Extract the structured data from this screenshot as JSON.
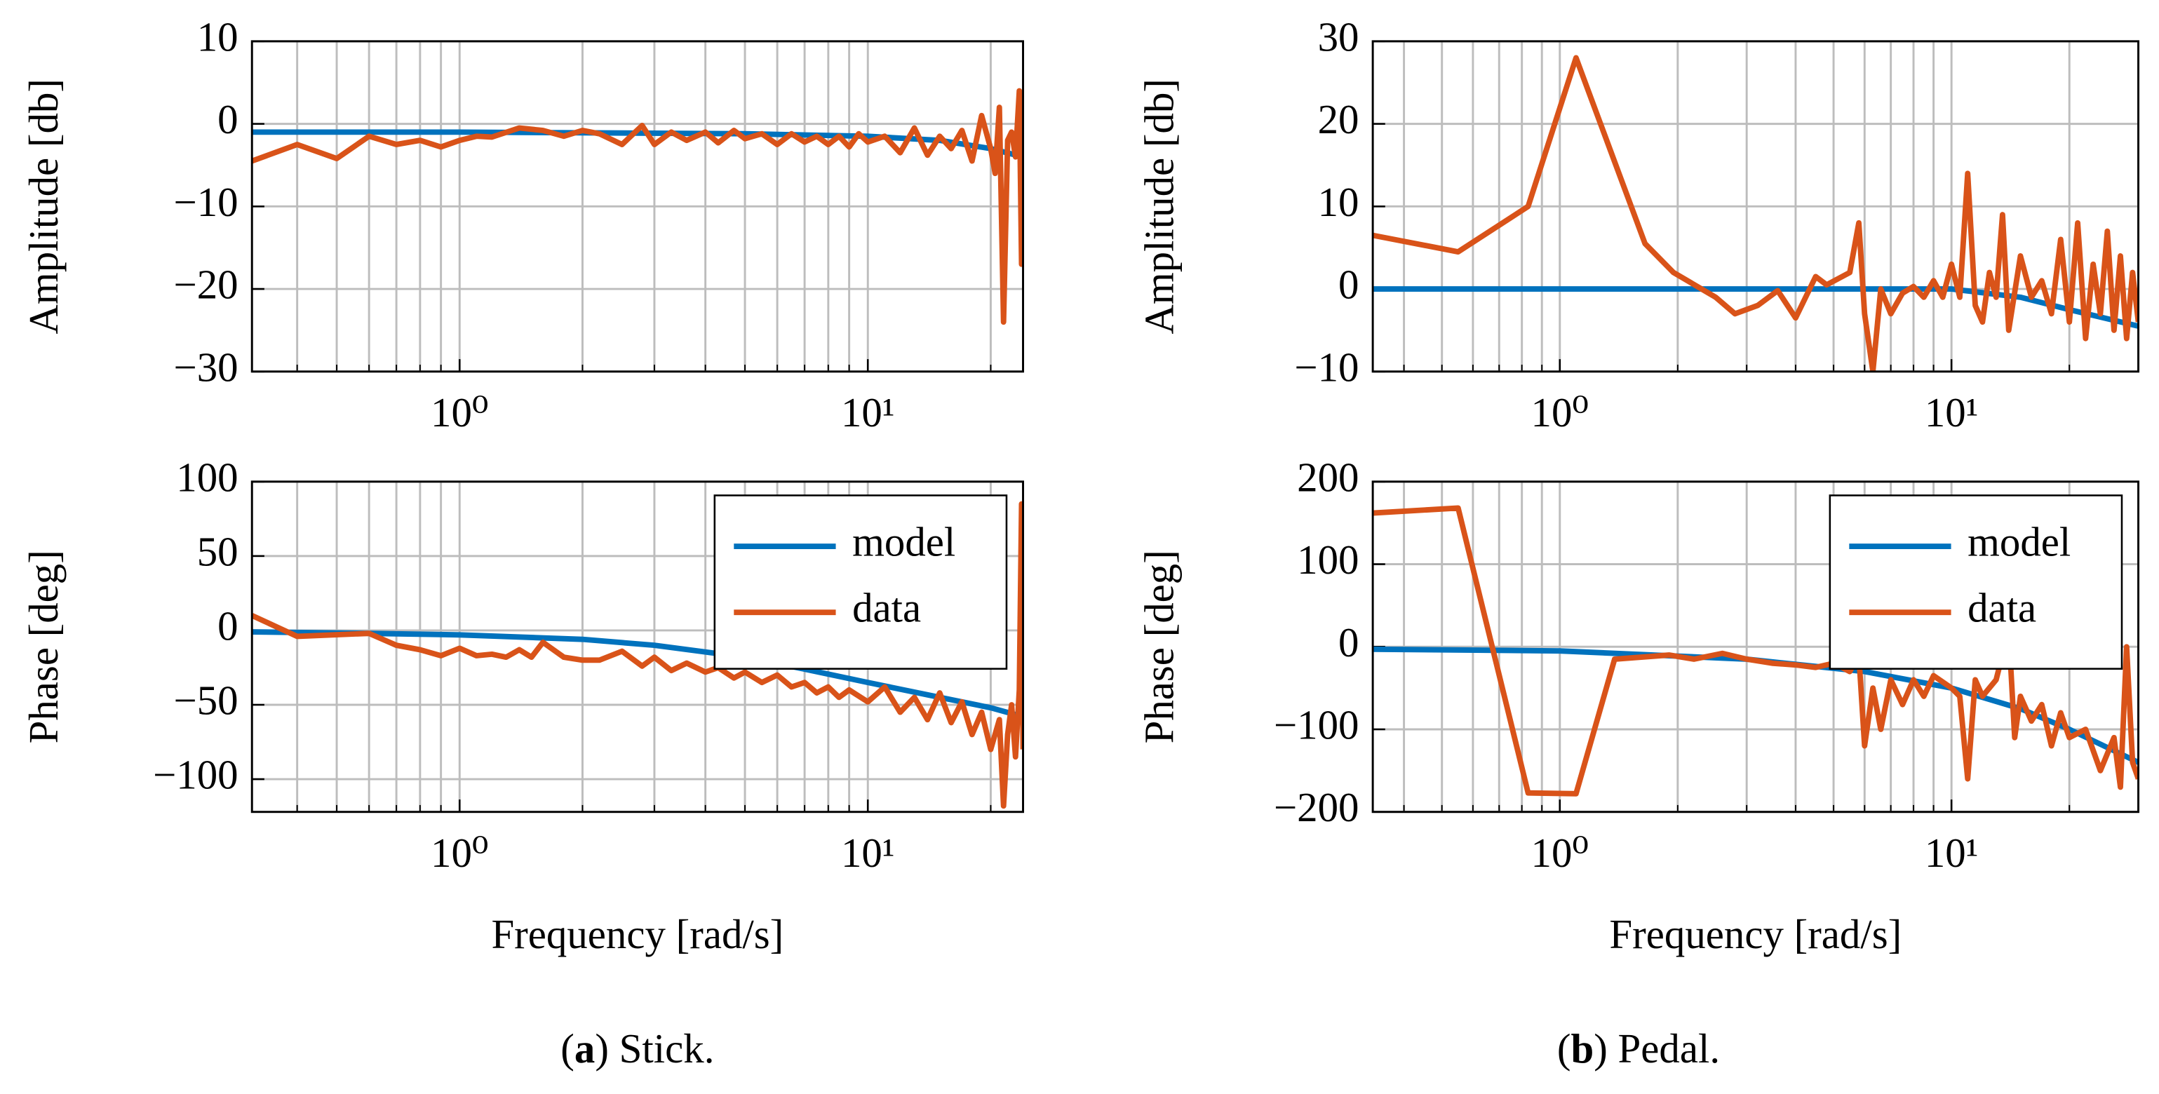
{
  "chart_data": [
    {
      "type": "line",
      "xlog": true,
      "grid": true,
      "ylabel": "Amplitude [db]",
      "xlim": [
        0.31,
        24
      ],
      "xticks": [
        {
          "value": 1,
          "label": "10⁰"
        },
        {
          "value": 10,
          "label": "10¹"
        }
      ],
      "xminorticks": [
        0.4,
        0.5,
        0.6,
        0.7,
        0.8,
        0.9,
        2,
        3,
        4,
        5,
        6,
        7,
        8,
        9,
        20
      ],
      "ylim": [
        -30,
        10
      ],
      "yticks": [
        {
          "value": -30,
          "label": "−30"
        },
        {
          "value": -20,
          "label": "−20"
        },
        {
          "value": -10,
          "label": "−10"
        },
        0,
        10
      ],
      "series": [
        {
          "color": "#0072bd",
          "x": [
            0.31,
            1,
            5,
            10,
            15,
            20,
            24
          ],
          "values": [
            -1,
            -1,
            -1.2,
            -1.5,
            -2,
            -3,
            -4
          ]
        },
        {
          "color": "#d95319",
          "x": [
            0.31,
            0.4,
            0.5,
            0.6,
            0.7,
            0.8,
            0.9,
            1.0,
            1.1,
            1.2,
            1.4,
            1.6,
            1.8,
            2.0,
            2.2,
            2.5,
            2.8,
            3.0,
            3.3,
            3.6,
            4.0,
            4.3,
            4.7,
            5.0,
            5.5,
            6.0,
            6.5,
            7.0,
            7.5,
            8.0,
            8.5,
            9,
            9.5,
            10,
            11,
            12,
            13,
            14,
            15,
            16,
            17,
            18,
            19,
            20,
            20.5,
            21,
            21.5,
            22,
            22.5,
            23,
            23.5,
            23.8,
            24
          ],
          "values": [
            -4.5,
            -2.5,
            -4.2,
            -1.5,
            -2.5,
            -2,
            -2.8,
            -2,
            -1.5,
            -1.6,
            -0.5,
            -0.8,
            -1.5,
            -0.8,
            -1.2,
            -2.5,
            -0.2,
            -2.5,
            -1,
            -2,
            -1,
            -2.3,
            -0.8,
            -1.8,
            -1.2,
            -2.5,
            -1.2,
            -2.2,
            -1.5,
            -2.5,
            -1.5,
            -2.8,
            -1.2,
            -2.2,
            -1.5,
            -3.5,
            -0.5,
            -3.8,
            -1.5,
            -3,
            -0.8,
            -4.5,
            1,
            -3,
            -6,
            2,
            -24,
            -2,
            -1,
            -4,
            4,
            -17,
            2
          ]
        }
      ]
    },
    {
      "type": "line",
      "xlog": true,
      "grid": true,
      "ylabel": "Phase [deg]",
      "xlabel": "Frequency [rad/s]",
      "legend": "upper right",
      "xlim": [
        0.31,
        24
      ],
      "xticks": [
        {
          "value": 1,
          "label": "10⁰"
        },
        {
          "value": 10,
          "label": "10¹"
        }
      ],
      "xminorticks": [
        0.4,
        0.5,
        0.6,
        0.7,
        0.8,
        0.9,
        2,
        3,
        4,
        5,
        6,
        7,
        8,
        9,
        20
      ],
      "ylim": [
        -122,
        100
      ],
      "yticks": [
        {
          "value": -100,
          "label": "−100"
        },
        {
          "value": -50,
          "label": "−50"
        },
        0,
        50,
        100
      ],
      "series": [
        {
          "name": "model",
          "color": "#0072bd",
          "x": [
            0.31,
            0.6,
            1,
            2,
            3,
            5,
            7,
            10,
            15,
            20,
            24
          ],
          "values": [
            -1,
            -2,
            -3,
            -6,
            -10,
            -18,
            -26,
            -35,
            -45,
            -52,
            -58
          ]
        },
        {
          "name": "data",
          "color": "#d95319",
          "x": [
            0.31,
            0.4,
            0.6,
            0.7,
            0.8,
            0.9,
            1.0,
            1.1,
            1.2,
            1.3,
            1.4,
            1.5,
            1.6,
            1.8,
            2.0,
            2.2,
            2.5,
            2.8,
            3.0,
            3.3,
            3.6,
            4.0,
            4.3,
            4.7,
            5,
            5.5,
            6,
            6.5,
            7,
            7.5,
            8,
            8.5,
            9,
            10,
            11,
            12,
            13,
            14,
            15,
            16,
            17,
            18,
            19,
            20,
            21,
            21.5,
            22,
            22.5,
            23,
            23.5,
            23.8,
            24
          ],
          "values": [
            10,
            -4,
            -2,
            -10,
            -13,
            -17,
            -12,
            -17,
            -16,
            -18,
            -13,
            -18,
            -8,
            -18,
            -20,
            -20,
            -14,
            -24,
            -18,
            -27,
            -22,
            -28,
            -25,
            -32,
            -28,
            -35,
            -30,
            -38,
            -35,
            -42,
            -38,
            -45,
            -40,
            -48,
            -38,
            -55,
            -45,
            -60,
            -42,
            -62,
            -48,
            -70,
            -55,
            -80,
            -60,
            -118,
            -70,
            -50,
            -85,
            -40,
            85,
            -80
          ]
        }
      ]
    },
    {
      "type": "line",
      "xlog": true,
      "grid": true,
      "ylabel": "Amplitude [db]",
      "xlim": [
        0.333,
        30
      ],
      "xticks": [
        {
          "value": 1,
          "label": "10⁰"
        },
        {
          "value": 10,
          "label": "10¹"
        }
      ],
      "xminorticks": [
        0.4,
        0.5,
        0.6,
        0.7,
        0.8,
        0.9,
        2,
        3,
        4,
        5,
        6,
        7,
        8,
        9,
        20,
        30
      ],
      "ylim": [
        -10,
        30
      ],
      "yticks": [
        {
          "value": -10,
          "label": "−10"
        },
        0,
        10,
        20,
        30
      ],
      "series": [
        {
          "color": "#0072bd",
          "x": [
            0.333,
            10,
            15,
            20,
            30
          ],
          "values": [
            0,
            0,
            -1,
            -2.5,
            -4.5
          ]
        },
        {
          "color": "#d95319",
          "x": [
            0.333,
            0.55,
            0.83,
            1.1,
            1.65,
            1.95,
            2.5,
            2.8,
            3.2,
            3.6,
            4.0,
            4.5,
            4.8,
            5.5,
            5.8,
            6.0,
            6.3,
            6.6,
            7,
            7.5,
            8,
            8.5,
            9,
            9.5,
            10,
            10.5,
            11,
            11.5,
            12,
            12.5,
            13,
            13.5,
            14,
            15,
            16,
            17,
            18,
            19,
            20,
            21,
            22,
            23,
            24,
            25,
            26,
            27,
            28,
            29,
            30
          ],
          "values": [
            6.5,
            4.5,
            10,
            28,
            5.5,
            2,
            -1,
            -3,
            -2,
            -0.2,
            -3.5,
            1.5,
            0.5,
            2,
            8,
            -3,
            -10,
            0,
            -3,
            -0.5,
            0.3,
            -1,
            1,
            -1,
            3,
            -1,
            14,
            -2,
            -4,
            2,
            -1,
            9,
            -5,
            4,
            -1,
            1,
            -3,
            6,
            -4,
            8,
            -6,
            3,
            -3,
            7,
            -5,
            4,
            -6,
            2,
            -4
          ]
        }
      ]
    },
    {
      "type": "line",
      "xlog": true,
      "grid": true,
      "ylabel": "Phase [deg]",
      "xlabel": "Frequency [rad/s]",
      "legend": "upper right",
      "xlim": [
        0.333,
        30
      ],
      "xticks": [
        {
          "value": 1,
          "label": "10⁰"
        },
        {
          "value": 10,
          "label": "10¹"
        }
      ],
      "xminorticks": [
        0.4,
        0.5,
        0.6,
        0.7,
        0.8,
        0.9,
        2,
        3,
        4,
        5,
        6,
        7,
        8,
        9,
        20,
        30
      ],
      "ylim": [
        -200,
        200
      ],
      "yticks": [
        {
          "value": -200,
          "label": "−200"
        },
        {
          "value": -100,
          "label": "−100"
        },
        0,
        100,
        200
      ],
      "series": [
        {
          "name": "model",
          "color": "#0072bd",
          "x": [
            0.333,
            1,
            3,
            6,
            10,
            15,
            20,
            30
          ],
          "values": [
            -3,
            -5,
            -15,
            -30,
            -50,
            -75,
            -100,
            -140
          ]
        },
        {
          "name": "data",
          "color": "#d95319",
          "x": [
            0.333,
            0.55,
            0.83,
            1.1,
            1.38,
            1.9,
            2.2,
            2.6,
            3.0,
            3.5,
            4.0,
            4.5,
            5.0,
            5.5,
            5.8,
            6.0,
            6.3,
            6.6,
            7,
            7.5,
            8,
            8.5,
            9,
            10,
            10.5,
            11,
            11.5,
            12,
            13,
            14,
            14.5,
            15,
            16,
            17,
            18,
            19,
            20,
            22,
            24,
            26,
            27,
            28,
            29,
            30
          ],
          "values": [
            162,
            168,
            -177,
            -178,
            -15,
            -10,
            -15,
            -8,
            -15,
            -20,
            -22,
            -25,
            -20,
            -30,
            -10,
            -120,
            -50,
            -100,
            -40,
            -70,
            -40,
            -60,
            -35,
            -50,
            -60,
            -160,
            -40,
            -60,
            -40,
            20,
            -110,
            -60,
            -90,
            -70,
            -120,
            -80,
            -110,
            -100,
            -150,
            -110,
            -170,
            0,
            -140,
            -160
          ]
        }
      ]
    }
  ],
  "captions": [
    {
      "open": "(",
      "letter": "a",
      "rest": ") Stick."
    },
    {
      "open": "(",
      "letter": "b",
      "rest": ") Pedal."
    }
  ]
}
